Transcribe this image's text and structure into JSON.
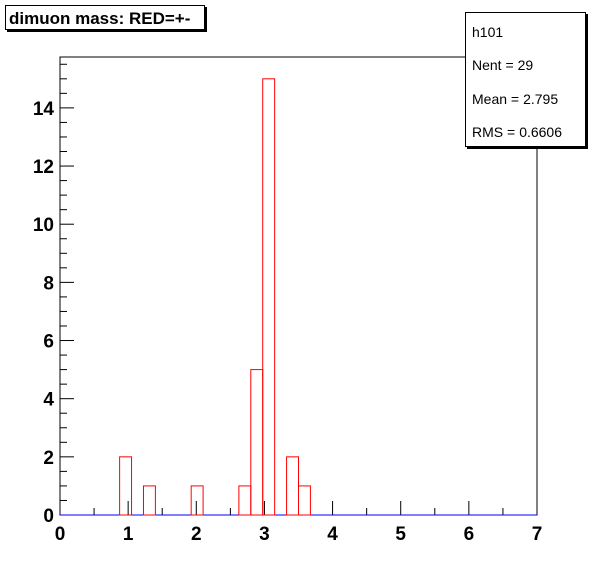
{
  "title": "dimuon mass: RED=+-",
  "stats": {
    "name": "h101",
    "entries_label": "Nent =",
    "entries_value": "29",
    "mean_label": "Mean  =",
    "mean_value": "2.795",
    "rms_label": "RMS  =",
    "rms_value": "0.6606"
  },
  "chart_data": {
    "type": "bar",
    "histogram": true,
    "xlim": [
      0,
      7
    ],
    "ylim": [
      0,
      15.75
    ],
    "bin_width": 0.175,
    "x_ticks": [
      0,
      1,
      2,
      3,
      4,
      5,
      6,
      7
    ],
    "y_ticks": [
      0,
      2,
      4,
      6,
      8,
      10,
      12,
      14
    ],
    "bins": [
      {
        "x0": 0.875,
        "x1": 1.05,
        "count": 2
      },
      {
        "x0": 1.225,
        "x1": 1.4,
        "count": 1
      },
      {
        "x0": 1.925,
        "x1": 2.1,
        "count": 1
      },
      {
        "x0": 2.625,
        "x1": 2.8,
        "count": 1
      },
      {
        "x0": 2.8,
        "x1": 2.975,
        "count": 5
      },
      {
        "x0": 2.975,
        "x1": 3.15,
        "count": 15
      },
      {
        "x0": 3.325,
        "x1": 3.5,
        "count": 2
      },
      {
        "x0": 3.5,
        "x1": 3.675,
        "count": 1
      }
    ],
    "colors": {
      "histogram": "#ff0000",
      "baseline": "#0000ff",
      "axis": "#000000"
    }
  }
}
